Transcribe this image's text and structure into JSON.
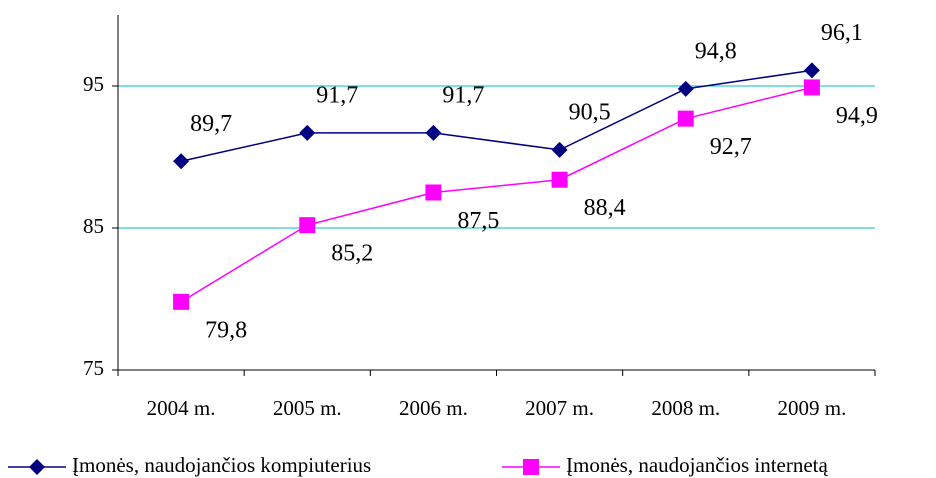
{
  "chart_data": {
    "type": "line",
    "categories": [
      "2004 m.",
      "2005 m.",
      "2006 m.",
      "2007 m.",
      "2008 m.",
      "2009 m."
    ],
    "series": [
      {
        "name": "Įmonės, naudojančios kompiuterius",
        "color": "#000080",
        "marker": "diamond",
        "values": [
          89.7,
          91.7,
          91.7,
          90.5,
          94.8,
          96.1
        ],
        "value_labels": [
          "89,7",
          "91,7",
          "91,7",
          "90,5",
          "94,8",
          "96,1"
        ]
      },
      {
        "name": "Įmonės, naudojančios internetą",
        "color": "#ff00ff",
        "marker": "square",
        "values": [
          79.8,
          85.2,
          87.5,
          88.4,
          92.7,
          94.9
        ],
        "value_labels": [
          "79,8",
          "85,2",
          "87,5",
          "88,4",
          "92,7",
          "94,9"
        ]
      }
    ],
    "ylim": [
      75,
      100
    ],
    "yticks": [
      75,
      85,
      95
    ],
    "grid": true,
    "grid_color": "#00c0c0",
    "legend": "bottom"
  }
}
